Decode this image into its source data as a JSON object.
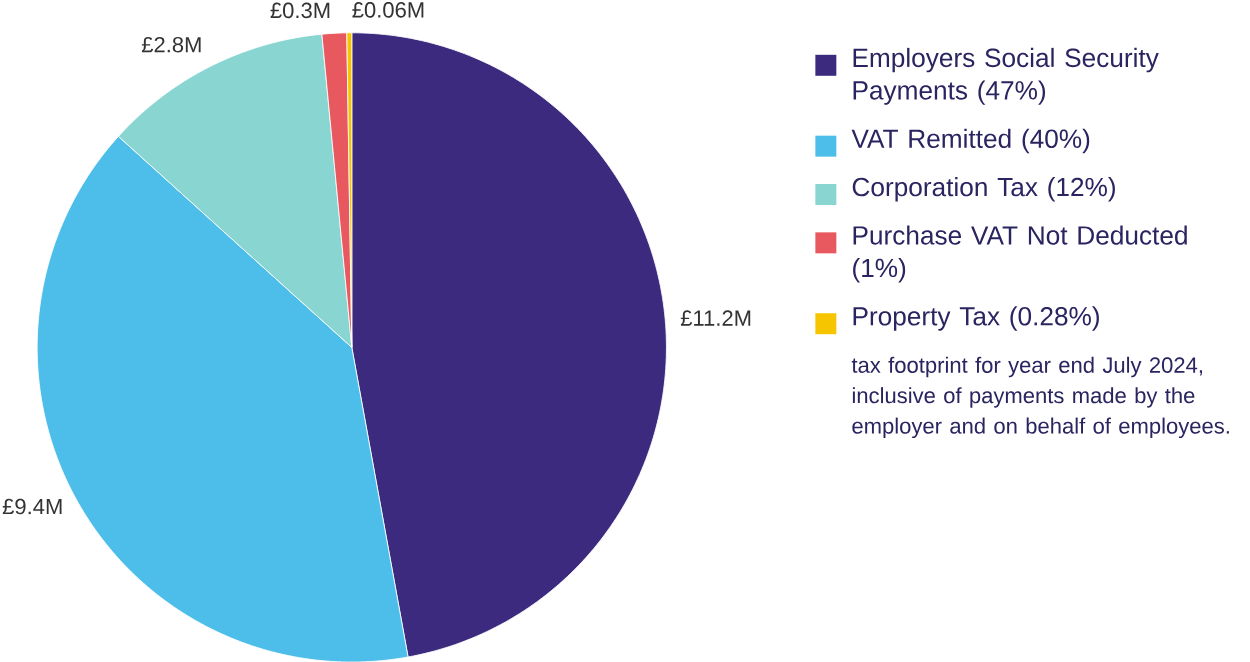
{
  "chart_data": {
    "type": "pie",
    "categories": [
      "Employers Social Security Payments  (47%)",
      "VAT Remitted (40%)",
      "Corporation Tax (12%)",
      "Purchase VAT Not Deducted (1%)",
      "Property Tax (0.28%)"
    ],
    "values": [
      11.2,
      9.4,
      2.8,
      0.3,
      0.06
    ],
    "colors": [
      "#3b2a7e",
      "#4dbee9",
      "#89d5d1",
      "#e8585f",
      "#f6c500"
    ],
    "value_labels": [
      "£11.2M",
      "£9.4M",
      "£2.8M",
      "£0.3M",
      "£0.06M"
    ],
    "legend": "right",
    "annotations": [
      "tax footprint for year end July 2024, inclusive of payments made by the employer and on behalf of employees."
    ]
  }
}
